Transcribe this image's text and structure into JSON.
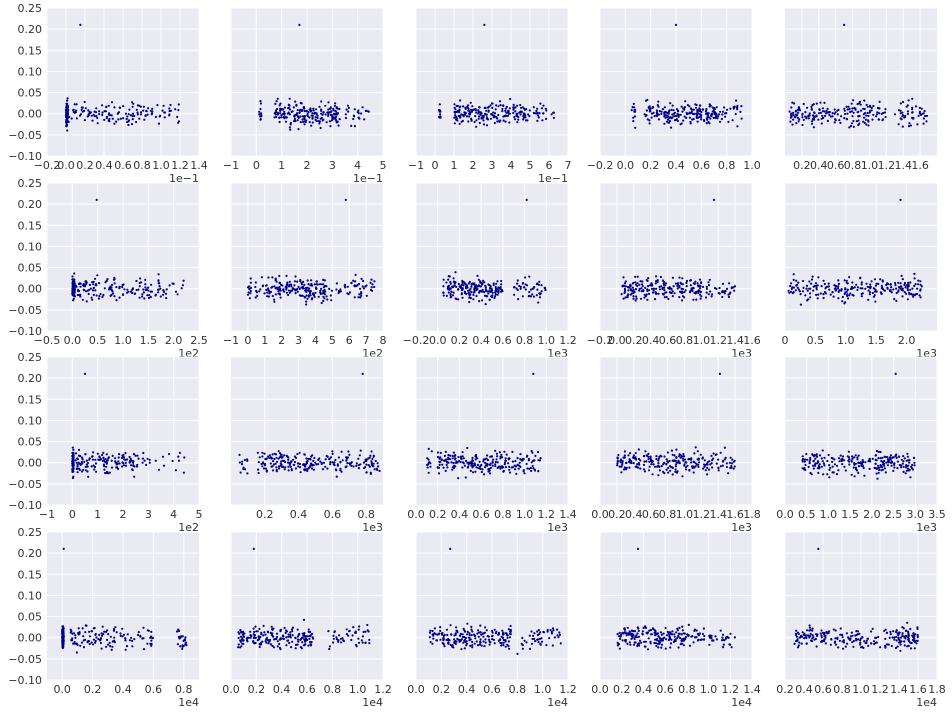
{
  "colors": {
    "axes_bg": "#EAEAF2",
    "grid": "#FFFFFF",
    "marker": "#00008B",
    "text": "#333333"
  },
  "chart_data": [
    {
      "type": "scatter",
      "title": "",
      "xlabel": "",
      "ylabel": "",
      "grid": true,
      "xlim": [
        -0.2,
        1.4
      ],
      "ylim": [
        -0.1,
        0.25
      ],
      "xticks": [
        -0.2,
        0.0,
        0.2,
        0.4,
        0.6,
        0.8,
        1.0,
        1.2,
        1.4
      ],
      "xtick_labels": [
        "−0.2",
        "0.0",
        "0.2",
        "0.4",
        "0.6",
        "0.8",
        "1.0",
        "1.2",
        "1.4"
      ],
      "yticks": [
        -0.1,
        -0.05,
        0.0,
        0.05,
        0.1,
        0.15,
        0.2,
        0.25
      ],
      "ytick_labels": [
        "−0.10",
        "−0.05",
        "0.00",
        "0.05",
        "0.10",
        "0.15",
        "0.20",
        "0.25"
      ],
      "x_multiplier": "1e−1",
      "outlier": [
        0.15,
        0.21
      ],
      "x_clusters": [
        [
          0.0,
          0.02,
          0.3
        ],
        [
          0.0,
          0.8,
          0.45
        ],
        [
          0.8,
          1.2,
          0.15
        ]
      ],
      "points": []
    },
    {
      "type": "scatter",
      "title": "",
      "xlabel": "",
      "ylabel": "",
      "grid": true,
      "xlim": [
        -1,
        5
      ],
      "ylim": [
        -0.1,
        0.25
      ],
      "xticks": [
        -1,
        0,
        1,
        2,
        3,
        4,
        5
      ],
      "xtick_labels": [
        "−1",
        "0",
        "1",
        "2",
        "3",
        "4",
        "5"
      ],
      "yticks": [],
      "ytick_labels": [],
      "x_multiplier": "1e−1",
      "outlier": [
        1.7,
        0.21
      ],
      "x_clusters": [
        [
          0.1,
          0.2,
          0.05
        ],
        [
          0.7,
          3.3,
          0.85
        ],
        [
          3.5,
          4.5,
          0.1
        ]
      ],
      "points": []
    },
    {
      "type": "scatter",
      "title": "",
      "xlabel": "",
      "ylabel": "",
      "grid": true,
      "xlim": [
        -1,
        7
      ],
      "ylim": [
        -0.1,
        0.25
      ],
      "xticks": [
        -1,
        0,
        1,
        2,
        3,
        4,
        5,
        6,
        7
      ],
      "xtick_labels": [
        "−1",
        "0",
        "1",
        "2",
        "3",
        "4",
        "5",
        "6",
        "7"
      ],
      "yticks": [],
      "ytick_labels": [],
      "x_multiplier": "1e−1",
      "outlier": [
        2.6,
        0.21
      ],
      "x_clusters": [
        [
          0.2,
          0.3,
          0.05
        ],
        [
          1.0,
          5.0,
          0.85
        ],
        [
          5.2,
          6.3,
          0.1
        ]
      ],
      "points": []
    },
    {
      "type": "scatter",
      "title": "",
      "xlabel": "",
      "ylabel": "",
      "grid": true,
      "xlim": [
        -0.2,
        1.0
      ],
      "ylim": [
        -0.1,
        0.25
      ],
      "xticks": [
        -0.2,
        0.0,
        0.2,
        0.4,
        0.6,
        0.8,
        1.0
      ],
      "xtick_labels": [
        "−0.2",
        "0.0",
        "0.2",
        "0.4",
        "0.6",
        "0.8",
        "1.0"
      ],
      "yticks": [],
      "ytick_labels": [],
      "x_multiplier": "",
      "outlier": [
        0.4,
        0.21
      ],
      "x_clusters": [
        [
          0.05,
          0.08,
          0.05
        ],
        [
          0.15,
          0.75,
          0.85
        ],
        [
          0.75,
          0.92,
          0.1
        ]
      ],
      "points": []
    },
    {
      "type": "scatter",
      "title": "",
      "xlabel": "",
      "ylabel": "",
      "grid": true,
      "xlim": [
        0.0,
        1.8
      ],
      "ylim": [
        -0.1,
        0.25
      ],
      "xticks": [
        0.2,
        0.4,
        0.6,
        0.8,
        1.0,
        1.2,
        1.4,
        1.6
      ],
      "xtick_labels": [
        "0.2",
        "0.4",
        "0.6",
        "0.8",
        "1.0",
        "1.2",
        "1.4",
        "1.6"
      ],
      "yticks": [],
      "ytick_labels": [],
      "x_multiplier": "",
      "outlier": [
        0.7,
        0.21
      ],
      "x_clusters": [
        [
          0.05,
          0.1,
          0.05
        ],
        [
          0.1,
          1.2,
          0.75
        ],
        [
          1.3,
          1.7,
          0.2
        ]
      ],
      "points": []
    },
    {
      "type": "scatter",
      "title": "",
      "xlabel": "",
      "ylabel": "",
      "grid": true,
      "xlim": [
        -0.5,
        2.5
      ],
      "ylim": [
        -0.1,
        0.25
      ],
      "xticks": [
        -0.5,
        0.0,
        0.5,
        1.0,
        1.5,
        2.0,
        2.5
      ],
      "xtick_labels": [
        "−0.5",
        "0.0",
        "0.5",
        "1.0",
        "1.5",
        "2.0",
        "2.5"
      ],
      "yticks": [
        -0.1,
        -0.05,
        0.0,
        0.05,
        0.1,
        0.15,
        0.2,
        0.25
      ],
      "ytick_labels": [
        "−0.10",
        "−0.05",
        "0.00",
        "0.05",
        "0.10",
        "0.15",
        "0.20",
        "0.25"
      ],
      "x_multiplier": "1e2",
      "outlier": [
        0.48,
        0.21
      ],
      "x_clusters": [
        [
          0.0,
          0.05,
          0.35
        ],
        [
          0.05,
          1.8,
          0.6
        ],
        [
          1.8,
          2.3,
          0.05
        ]
      ],
      "points": []
    },
    {
      "type": "scatter",
      "title": "",
      "xlabel": "",
      "ylabel": "",
      "grid": true,
      "xlim": [
        -1,
        8
      ],
      "ylim": [
        -0.1,
        0.25
      ],
      "xticks": [
        -1,
        0,
        1,
        2,
        3,
        4,
        5,
        6,
        7,
        8
      ],
      "xtick_labels": [
        "−1",
        "0",
        "1",
        "2",
        "3",
        "4",
        "5",
        "6",
        "7",
        "8"
      ],
      "yticks": [],
      "ytick_labels": [],
      "x_multiplier": "1e2",
      "outlier": [
        5.8,
        0.21
      ],
      "x_clusters": [
        [
          0.0,
          0.2,
          0.05
        ],
        [
          0.4,
          5.0,
          0.75
        ],
        [
          5.2,
          7.5,
          0.2
        ]
      ],
      "points": []
    },
    {
      "type": "scatter",
      "title": "",
      "xlabel": "",
      "ylabel": "",
      "grid": true,
      "xlim": [
        -0.2,
        1.2
      ],
      "ylim": [
        -0.1,
        0.25
      ],
      "xticks": [
        -0.2,
        0.0,
        0.2,
        0.4,
        0.6,
        0.8,
        1.0,
        1.2
      ],
      "xtick_labels": [
        "−0.2",
        "0.0",
        "0.2",
        "0.4",
        "0.6",
        "0.8",
        "1.0",
        "1.2"
      ],
      "yticks": [],
      "ytick_labels": [],
      "x_multiplier": "1e3",
      "outlier": [
        0.82,
        0.21
      ],
      "x_clusters": [
        [
          0.05,
          0.1,
          0.05
        ],
        [
          0.1,
          0.6,
          0.75
        ],
        [
          0.7,
          1.0,
          0.2
        ]
      ],
      "points": []
    },
    {
      "type": "scatter",
      "title": "",
      "xlabel": "",
      "ylabel": "",
      "grid": true,
      "xlim": [
        -0.2,
        1.6
      ],
      "ylim": [
        -0.1,
        0.25
      ],
      "xticks": [
        -0.2,
        0.0,
        0.2,
        0.4,
        0.6,
        0.8,
        1.0,
        1.2,
        1.4,
        1.6
      ],
      "xtick_labels": [
        "−0.2",
        "0.0",
        "0.2",
        "0.4",
        "0.6",
        "0.8",
        "1.0",
        "1.2",
        "1.4",
        "1.6"
      ],
      "yticks": [],
      "ytick_labels": [],
      "x_multiplier": "1e3",
      "outlier": [
        1.15,
        0.21
      ],
      "x_clusters": [
        [
          0.05,
          0.1,
          0.05
        ],
        [
          0.1,
          1.0,
          0.8
        ],
        [
          1.0,
          1.4,
          0.15
        ]
      ],
      "points": []
    },
    {
      "type": "scatter",
      "title": "",
      "xlabel": "",
      "ylabel": "",
      "grid": true,
      "xlim": [
        0.0,
        2.5
      ],
      "ylim": [
        -0.1,
        0.25
      ],
      "xticks": [
        0.0,
        0.5,
        1.0,
        1.5,
        2.0
      ],
      "xtick_labels": [
        "0",
        "0.5",
        "1.0",
        "1.5",
        "2.0"
      ],
      "yticks": [],
      "ytick_labels": [],
      "x_multiplier": "1e3",
      "outlier": [
        1.9,
        0.21
      ],
      "x_clusters": [
        [
          0.05,
          0.15,
          0.05
        ],
        [
          0.15,
          2.0,
          0.8
        ],
        [
          2.0,
          2.25,
          0.15
        ]
      ],
      "points": []
    },
    {
      "type": "scatter",
      "title": "",
      "xlabel": "",
      "ylabel": "",
      "grid": true,
      "xlim": [
        -1,
        5
      ],
      "ylim": [
        -0.1,
        0.25
      ],
      "xticks": [
        -1,
        0,
        1,
        2,
        3,
        4,
        5
      ],
      "xtick_labels": [
        "−1",
        "0",
        "1",
        "2",
        "3",
        "4",
        "5"
      ],
      "yticks": [
        -0.1,
        -0.05,
        0.0,
        0.05,
        0.1,
        0.15,
        0.2,
        0.25
      ],
      "ytick_labels": [
        "−0.10",
        "−0.05",
        "0.00",
        "0.05",
        "0.10",
        "0.15",
        "0.20",
        "0.25"
      ],
      "x_multiplier": "1e2",
      "outlier": [
        0.5,
        0.21
      ],
      "x_clusters": [
        [
          0.0,
          0.05,
          0.35
        ],
        [
          0.05,
          2.5,
          0.55
        ],
        [
          2.5,
          4.5,
          0.1
        ]
      ],
      "points": []
    },
    {
      "type": "scatter",
      "title": "",
      "xlabel": "",
      "ylabel": "",
      "grid": true,
      "xlim": [
        0.0,
        0.9
      ],
      "ylim": [
        -0.1,
        0.25
      ],
      "xticks": [
        0.2,
        0.4,
        0.6,
        0.8
      ],
      "xtick_labels": [
        "0.2",
        "0.4",
        "0.6",
        "0.8"
      ],
      "yticks": [],
      "ytick_labels": [],
      "x_multiplier": "1e3",
      "outlier": [
        0.78,
        0.21
      ],
      "x_clusters": [
        [
          0.05,
          0.1,
          0.05
        ],
        [
          0.15,
          0.65,
          0.7
        ],
        [
          0.65,
          0.88,
          0.25
        ]
      ],
      "points": []
    },
    {
      "type": "scatter",
      "title": "",
      "xlabel": "",
      "ylabel": "",
      "grid": true,
      "xlim": [
        0.0,
        1.4
      ],
      "ylim": [
        -0.1,
        0.25
      ],
      "xticks": [
        0.0,
        0.2,
        0.4,
        0.6,
        0.8,
        1.0,
        1.2,
        1.4
      ],
      "xtick_labels": [
        "0.0",
        "0.2",
        "0.4",
        "0.6",
        "0.8",
        "1.0",
        "1.2",
        "1.4"
      ],
      "yticks": [],
      "ytick_labels": [],
      "x_multiplier": "1e3",
      "outlier": [
        1.08,
        0.21
      ],
      "x_clusters": [
        [
          0.1,
          0.15,
          0.05
        ],
        [
          0.2,
          0.9,
          0.75
        ],
        [
          0.9,
          1.15,
          0.2
        ]
      ],
      "points": []
    },
    {
      "type": "scatter",
      "title": "",
      "xlabel": "",
      "ylabel": "",
      "grid": true,
      "xlim": [
        0.0,
        1.8
      ],
      "ylim": [
        -0.1,
        0.25
      ],
      "xticks": [
        0.0,
        0.2,
        0.4,
        0.6,
        0.8,
        1.0,
        1.2,
        1.4,
        1.6,
        1.8
      ],
      "xtick_labels": [
        "0.0",
        "0.2",
        "0.4",
        "0.6",
        "0.8",
        "1.0",
        "1.2",
        "1.4",
        "1.6",
        "1.8"
      ],
      "yticks": [],
      "ytick_labels": [],
      "x_multiplier": "1e3",
      "outlier": [
        1.42,
        0.21
      ],
      "x_clusters": [
        [
          0.2,
          0.25,
          0.05
        ],
        [
          0.25,
          1.3,
          0.8
        ],
        [
          1.3,
          1.6,
          0.15
        ]
      ],
      "points": []
    },
    {
      "type": "scatter",
      "title": "",
      "xlabel": "",
      "ylabel": "",
      "grid": true,
      "xlim": [
        0.0,
        3.5
      ],
      "ylim": [
        -0.1,
        0.25
      ],
      "xticks": [
        0.0,
        0.5,
        1.0,
        1.5,
        2.0,
        2.5,
        3.0,
        3.5
      ],
      "xtick_labels": [
        "0.0",
        "0.5",
        "1.0",
        "1.5",
        "2.0",
        "2.5",
        "3.0",
        "3.5"
      ],
      "yticks": [],
      "ytick_labels": [],
      "x_multiplier": "1e3",
      "outlier": [
        2.55,
        0.21
      ],
      "x_clusters": [
        [
          0.4,
          0.5,
          0.05
        ],
        [
          0.5,
          2.0,
          0.5
        ],
        [
          2.0,
          3.0,
          0.45
        ]
      ],
      "points": []
    },
    {
      "type": "scatter",
      "title": "",
      "xlabel": "",
      "ylabel": "",
      "grid": true,
      "xlim": [
        -0.1,
        0.9
      ],
      "ylim": [
        -0.1,
        0.25
      ],
      "xticks": [
        0.0,
        0.2,
        0.4,
        0.6,
        0.8
      ],
      "xtick_labels": [
        "0.0",
        "0.2",
        "0.4",
        "0.6",
        "0.8"
      ],
      "yticks": [
        -0.1,
        -0.05,
        0.0,
        0.05,
        0.1,
        0.15,
        0.2,
        0.25
      ],
      "ytick_labels": [
        "−0.10",
        "−0.05",
        "0.00",
        "0.05",
        "0.10",
        "0.15",
        "0.20",
        "0.25"
      ],
      "x_multiplier": "1e4",
      "outlier": [
        0.01,
        0.21
      ],
      "x_clusters": [
        [
          0.0,
          0.01,
          0.4
        ],
        [
          0.05,
          0.6,
          0.5
        ],
        [
          0.75,
          0.82,
          0.1
        ]
      ],
      "points": []
    },
    {
      "type": "scatter",
      "title": "",
      "xlabel": "",
      "ylabel": "",
      "grid": true,
      "xlim": [
        0.0,
        1.2
      ],
      "ylim": [
        -0.1,
        0.25
      ],
      "xticks": [
        0.0,
        0.2,
        0.4,
        0.6,
        0.8,
        1.0,
        1.2
      ],
      "xtick_labels": [
        "0.0",
        "0.2",
        "0.4",
        "0.6",
        "0.8",
        "1.0",
        "1.2"
      ],
      "yticks": [],
      "ytick_labels": [],
      "x_multiplier": "1e4",
      "outlier": [
        0.18,
        0.21
      ],
      "x_clusters": [
        [
          0.05,
          0.1,
          0.1
        ],
        [
          0.1,
          0.65,
          0.7
        ],
        [
          0.75,
          1.1,
          0.2
        ]
      ],
      "points": []
    },
    {
      "type": "scatter",
      "title": "",
      "xlabel": "",
      "ylabel": "",
      "grid": true,
      "xlim": [
        0.0,
        1.2
      ],
      "ylim": [
        -0.1,
        0.25
      ],
      "xticks": [
        0.0,
        0.2,
        0.4,
        0.6,
        0.8,
        1.0,
        1.2
      ],
      "xtick_labels": [
        "0.0",
        "0.2",
        "0.4",
        "0.6",
        "0.8",
        "1.0",
        "1.2"
      ],
      "yticks": [],
      "ytick_labels": [],
      "x_multiplier": "1e4",
      "outlier": [
        0.27,
        0.21
      ],
      "x_clusters": [
        [
          0.1,
          0.15,
          0.05
        ],
        [
          0.15,
          0.75,
          0.75
        ],
        [
          0.8,
          1.15,
          0.2
        ]
      ],
      "points": []
    },
    {
      "type": "scatter",
      "title": "",
      "xlabel": "",
      "ylabel": "",
      "grid": true,
      "xlim": [
        0.0,
        1.4
      ],
      "ylim": [
        -0.1,
        0.25
      ],
      "xticks": [
        0.0,
        0.2,
        0.4,
        0.6,
        0.8,
        1.0,
        1.2,
        1.4
      ],
      "xtick_labels": [
        "0.0",
        "0.2",
        "0.4",
        "0.6",
        "0.8",
        "1.0",
        "1.2",
        "1.4"
      ],
      "yticks": [],
      "ytick_labels": [],
      "x_multiplier": "1e4",
      "outlier": [
        0.35,
        0.21
      ],
      "x_clusters": [
        [
          0.15,
          0.2,
          0.05
        ],
        [
          0.2,
          0.8,
          0.7
        ],
        [
          0.8,
          1.25,
          0.25
        ]
      ],
      "points": []
    },
    {
      "type": "scatter",
      "title": "",
      "xlabel": "",
      "ylabel": "",
      "grid": true,
      "xlim": [
        0.2,
        1.8
      ],
      "ylim": [
        -0.1,
        0.25
      ],
      "xticks": [
        0.2,
        0.4,
        0.6,
        0.8,
        1.0,
        1.2,
        1.4,
        1.6,
        1.8
      ],
      "xtick_labels": [
        "0.2",
        "0.4",
        "0.6",
        "0.8",
        "1.0",
        "1.2",
        "1.4",
        "1.6",
        "1.8"
      ],
      "yticks": [],
      "ytick_labels": [],
      "x_multiplier": "1e4",
      "outlier": [
        0.55,
        0.21
      ],
      "x_clusters": [
        [
          0.3,
          0.35,
          0.05
        ],
        [
          0.35,
          1.3,
          0.6
        ],
        [
          1.3,
          1.6,
          0.35
        ]
      ],
      "points": []
    }
  ]
}
